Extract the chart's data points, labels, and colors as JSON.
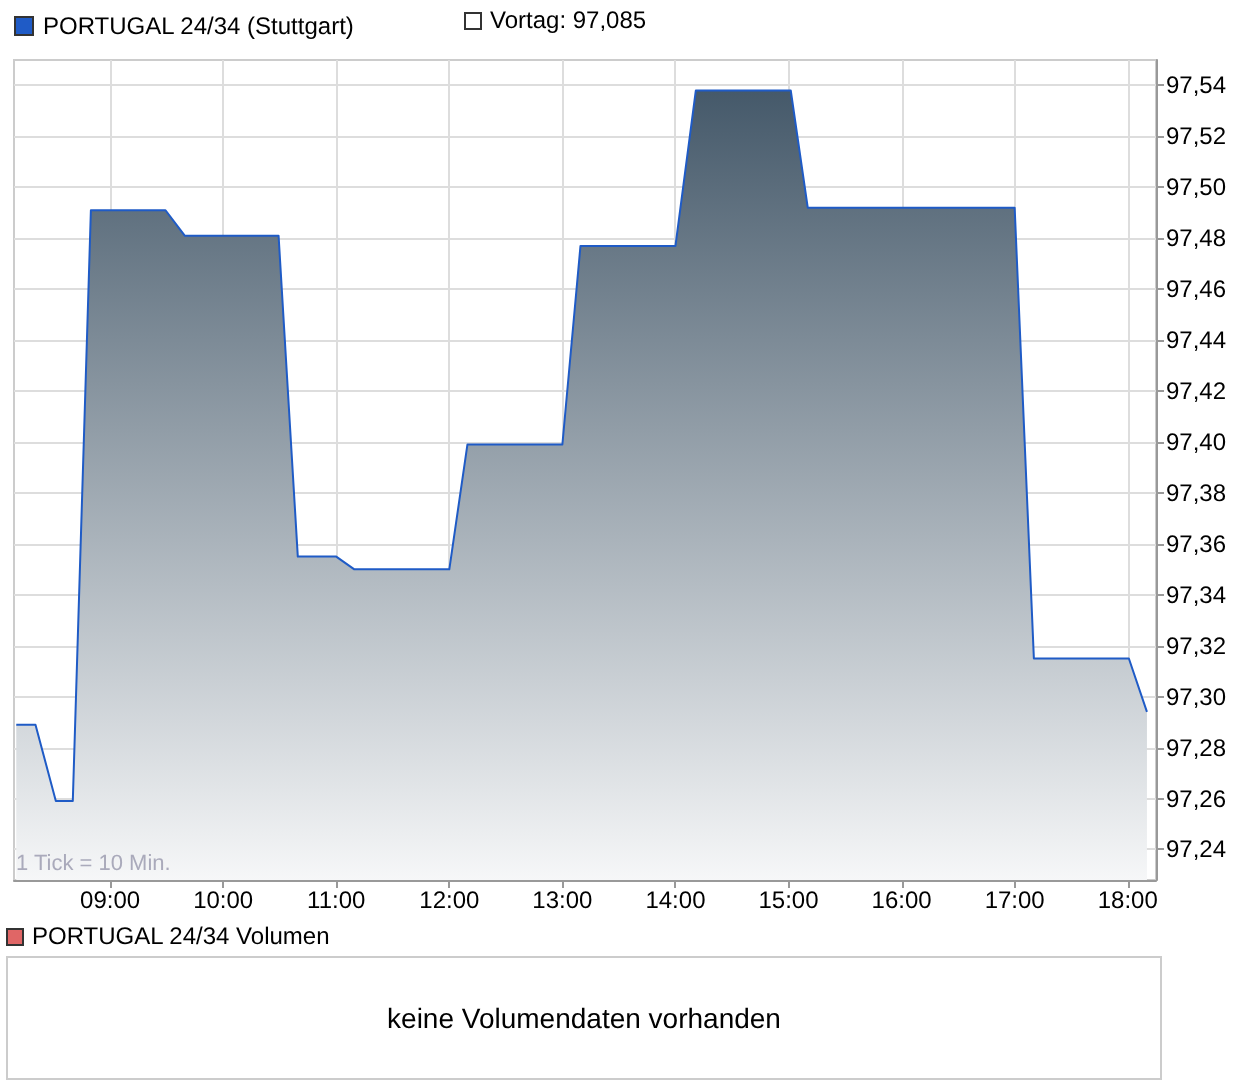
{
  "chart_data": [
    {
      "type": "area",
      "legend": "top left",
      "grid": true,
      "marker": "none",
      "line_style": "solid",
      "annotations": [
        "Vortag: 97,085",
        "1 Tick = 10 Min."
      ],
      "xlim": [
        8.15,
        18.25
      ],
      "xticks": [
        {
          "value": 9,
          "label": "09:00"
        },
        {
          "value": 10,
          "label": "10:00"
        },
        {
          "value": 11,
          "label": "11:00"
        },
        {
          "value": 12,
          "label": "12:00"
        },
        {
          "value": 13,
          "label": "13:00"
        },
        {
          "value": 14,
          "label": "14:00"
        },
        {
          "value": 15,
          "label": "15:00"
        },
        {
          "value": 16,
          "label": "16:00"
        },
        {
          "value": 17,
          "label": "17:00"
        },
        {
          "value": 18,
          "label": "18:00"
        }
      ],
      "ylim": [
        97.228,
        97.55
      ],
      "yticks": [
        {
          "value": 97.24,
          "label": "97,24"
        },
        {
          "value": 97.26,
          "label": "97,26"
        },
        {
          "value": 97.28,
          "label": "97,28"
        },
        {
          "value": 97.3,
          "label": "97,30"
        },
        {
          "value": 97.32,
          "label": "97,32"
        },
        {
          "value": 97.34,
          "label": "97,34"
        },
        {
          "value": 97.36,
          "label": "97,36"
        },
        {
          "value": 97.38,
          "label": "97,38"
        },
        {
          "value": 97.4,
          "label": "97,40"
        },
        {
          "value": 97.42,
          "label": "97,42"
        },
        {
          "value": 97.44,
          "label": "97,44"
        },
        {
          "value": 97.46,
          "label": "97,46"
        },
        {
          "value": 97.48,
          "label": "97,48"
        },
        {
          "value": 97.5,
          "label": "97,50"
        },
        {
          "value": 97.52,
          "label": "97,52"
        },
        {
          "value": 97.54,
          "label": "97,54"
        }
      ],
      "series": [
        {
          "name": "PORTUGAL 24/34 (Stuttgart)",
          "color": "#1f5bc6",
          "x": [
            8.17,
            8.34,
            8.52,
            8.67,
            8.83,
            9.49,
            9.66,
            10.49,
            10.66,
            11.0,
            11.16,
            12.0,
            12.16,
            13.0,
            13.16,
            14.0,
            14.18,
            15.02,
            15.17,
            17.0,
            17.17,
            18.01,
            18.17
          ],
          "values": [
            97.289,
            97.289,
            97.259,
            97.259,
            97.491,
            97.491,
            97.481,
            97.481,
            97.355,
            97.355,
            97.35,
            97.35,
            97.399,
            97.399,
            97.477,
            97.477,
            97.538,
            97.538,
            97.492,
            97.492,
            97.315,
            97.315,
            97.294
          ]
        }
      ]
    },
    {
      "type": "other",
      "title": "PORTUGAL 24/34 Volumen",
      "annotations": [
        "keine Volumendaten vorhanden"
      ]
    }
  ]
}
